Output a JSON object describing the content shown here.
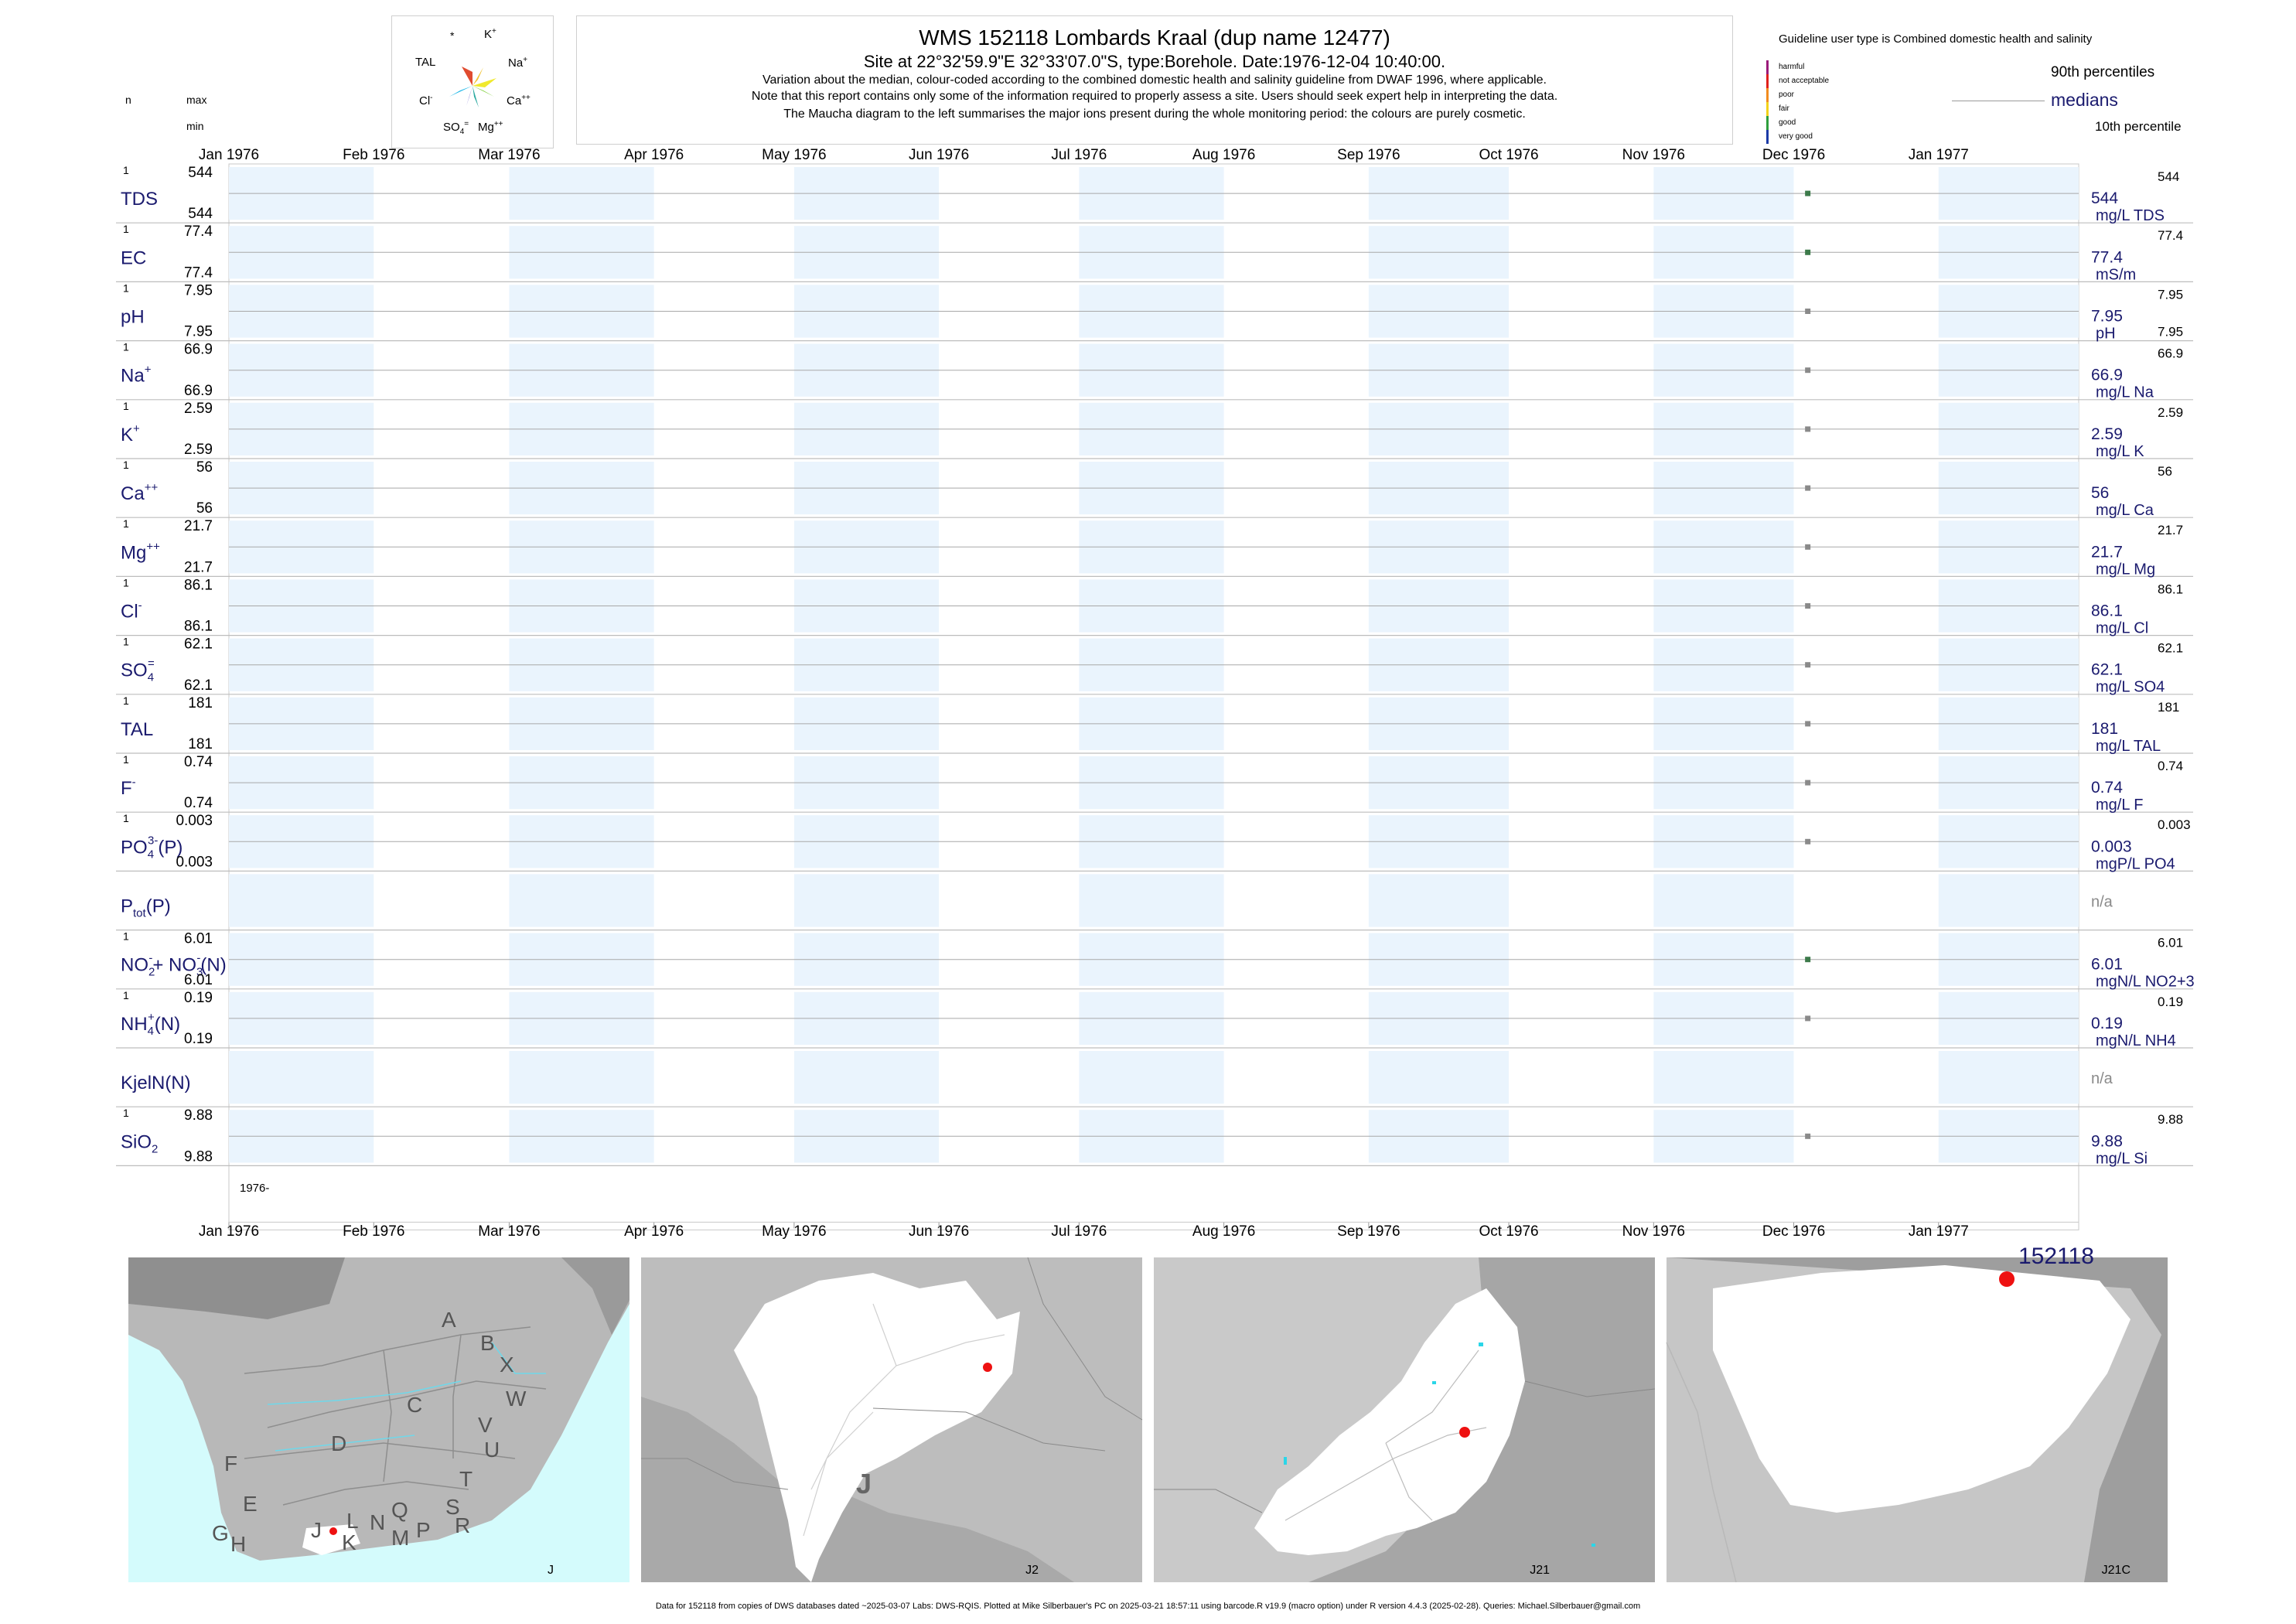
{
  "header": {
    "title": "WMS 152118  Lombards Kraal (dup name 12477)",
    "site": "Site at 22°32'59.9\"E 32°33'07.0\"S, type:Borehole. Date:1976-12-04 10:40:00.",
    "notes": [
      "Variation about the median,  colour-coded according to the combined domestic health and salinity guideline from DWAF 1996, where applicable.",
      "Note that this report contains only some of the information required to properly assess a site. Users should seek expert help in interpreting the data.",
      "The Maucha diagram to the left summarises the major ions present during the whole monitoring period: the colours are purely cosmetic."
    ],
    "col_n": "n",
    "col_max": "max",
    "col_min": "min"
  },
  "maucha": {
    "labels": {
      "star": "*",
      "k": "K",
      "k_sup": "+",
      "tal": "TAL",
      "na": "Na",
      "na_sup": "+",
      "cl": "Cl",
      "cl_sup": "-",
      "ca": "Ca",
      "ca_sup": "++",
      "so4": "SO",
      "so4_sub": "4",
      "so4_sup": "=",
      "mg": "Mg",
      "mg_sup": "++"
    }
  },
  "legend": {
    "guideline": "Guideline user type is Combined domestic health and salinity",
    "classes": [
      {
        "label": "harmful",
        "color": "#9b1b7a"
      },
      {
        "label": "not acceptable",
        "color": "#e0201b"
      },
      {
        "label": "poor",
        "color": "#f28c1e"
      },
      {
        "label": "fair",
        "color": "#f3d21b"
      },
      {
        "label": "good",
        "color": "#2e9e3d"
      },
      {
        "label": "very good",
        "color": "#1b3aa6"
      }
    ],
    "p90": "90th percentiles",
    "medians": "medians",
    "p10": "10th percentile"
  },
  "chart_data": {
    "type": "scatter",
    "x_axis": {
      "range": [
        "1976-01-01",
        "1977-01-31"
      ],
      "ticks": [
        "Jan 1976",
        "Feb 1976",
        "Mar 1976",
        "Apr 1976",
        "May 1976",
        "Jun 1976",
        "Jul 1976",
        "Aug 1976",
        "Sep 1976",
        "Oct 1976",
        "Nov 1976",
        "Dec 1976",
        "Jan 1977"
      ],
      "year_label": "1976-"
    },
    "sample_date": "1976-12-04",
    "shaded_months": [
      0,
      2,
      4,
      6,
      8,
      10,
      12
    ],
    "colors": {
      "band": "#eaf4fd",
      "point": "#3c7a4a",
      "point_grey": "#8a8a8a",
      "label": "#1a1a6e"
    },
    "panels": [
      {
        "id": "tds",
        "name": "TDS",
        "n": "1",
        "max": "544",
        "min": "544",
        "value": 544,
        "median": "544",
        "unit": "mg/L TDS",
        "p90": "544",
        "p10": "",
        "point": "green"
      },
      {
        "id": "ec",
        "name": "EC",
        "n": "1",
        "max": "77.4",
        "min": "77.4",
        "value": 77.4,
        "median": "77.4",
        "unit": "mS/m",
        "p90": "77.4",
        "p10": "",
        "point": "green"
      },
      {
        "id": "ph",
        "name": "pH",
        "n": "1",
        "max": "7.95",
        "min": "7.95",
        "value": 7.95,
        "median": "7.95",
        "unit": "pH",
        "p90": "7.95",
        "p10": "7.95",
        "point": "grey"
      },
      {
        "id": "na",
        "name": "Na",
        "sup": "+",
        "n": "1",
        "max": "66.9",
        "min": "66.9",
        "value": 66.9,
        "median": "66.9",
        "unit": "mg/L Na",
        "p90": "66.9",
        "p10": "",
        "point": "grey"
      },
      {
        "id": "k",
        "name": "K",
        "sup": "+",
        "n": "1",
        "max": "2.59",
        "min": "2.59",
        "value": 2.59,
        "median": "2.59",
        "unit": "mg/L K",
        "p90": "2.59",
        "p10": "",
        "point": "grey"
      },
      {
        "id": "ca",
        "name": "Ca",
        "sup": "++",
        "n": "1",
        "max": "56",
        "min": "56",
        "value": 56,
        "median": "56",
        "unit": "mg/L Ca",
        "p90": "56",
        "p10": "",
        "point": "grey"
      },
      {
        "id": "mg",
        "name": "Mg",
        "sup": "++",
        "n": "1",
        "max": "21.7",
        "min": "21.7",
        "value": 21.7,
        "median": "21.7",
        "unit": "mg/L Mg",
        "p90": "21.7",
        "p10": "",
        "point": "grey"
      },
      {
        "id": "cl",
        "name": "Cl",
        "sup": "-",
        "n": "1",
        "max": "86.1",
        "min": "86.1",
        "value": 86.1,
        "median": "86.1",
        "unit": "mg/L Cl",
        "p90": "86.1",
        "p10": "",
        "point": "grey"
      },
      {
        "id": "so4",
        "name": "SO",
        "sub": "4",
        "sup": "=",
        "n": "1",
        "max": "62.1",
        "min": "62.1",
        "value": 62.1,
        "median": "62.1",
        "unit": "mg/L SO4",
        "p90": "62.1",
        "p10": "",
        "point": "grey"
      },
      {
        "id": "tal",
        "name": "TAL",
        "n": "1",
        "max": "181",
        "min": "181",
        "value": 181,
        "median": "181",
        "unit": "mg/L TAL",
        "p90": "181",
        "p10": "",
        "point": "grey"
      },
      {
        "id": "f",
        "name": "F",
        "sup": "-",
        "n": "1",
        "max": "0.74",
        "min": "0.74",
        "value": 0.74,
        "median": "0.74",
        "unit": "mg/L F",
        "p90": "0.74",
        "p10": "",
        "point": "grey"
      },
      {
        "id": "po4",
        "name": "PO",
        "sub": "4",
        "sup": "3-",
        "suffix": "(P)",
        "n": "1",
        "max": "0.003",
        "min": "0.003",
        "value": 0.003,
        "median": "0.003",
        "unit": "mgP/L PO4",
        "p90": "0.003",
        "p10": "",
        "point": "grey"
      },
      {
        "id": "ptot",
        "name": "P",
        "sub": "tot",
        "suffix": "(P)",
        "n": "",
        "max": "",
        "min": "",
        "value": null,
        "median": "n/a",
        "unit": "",
        "p90": "",
        "p10": "",
        "point": "none"
      },
      {
        "id": "no3",
        "name": "NO",
        "sub": "2",
        "sup": "-",
        "mid": "+ NO",
        "sub2": "3",
        "sup2": "-",
        "suffix": "(N)",
        "n": "1",
        "max": "6.01",
        "min": "6.01",
        "value": 6.01,
        "median": "6.01",
        "unit": "mgN/L NO2+3",
        "p90": "6.01",
        "p10": "",
        "point": "green"
      },
      {
        "id": "nh4",
        "name": "NH",
        "sub": "4",
        "sup": "+",
        "suffix": "(N)",
        "n": "1",
        "max": "0.19",
        "min": "0.19",
        "value": 0.19,
        "median": "0.19",
        "unit": "mgN/L NH4",
        "p90": "0.19",
        "p10": "",
        "point": "grey"
      },
      {
        "id": "kjel",
        "name": "KjelN(N)",
        "n": "",
        "max": "",
        "min": "",
        "value": null,
        "median": "n/a",
        "unit": "",
        "p90": "",
        "p10": "",
        "point": "none"
      },
      {
        "id": "si",
        "name": "SiO",
        "sub": "2",
        "n": "1",
        "max": "9.88",
        "min": "9.88",
        "value": 9.88,
        "median": "9.88",
        "unit": "mg/L Si",
        "p90": "9.88",
        "p10": "",
        "point": "grey"
      }
    ]
  },
  "maps": {
    "m1": {
      "label": "J",
      "regions": [
        "A",
        "B",
        "X",
        "W",
        "C",
        "V",
        "U",
        "D",
        "T",
        "F",
        "E",
        "S",
        "Q",
        "R",
        "L",
        "N",
        "P",
        "M",
        "G",
        "H",
        "J",
        "K"
      ]
    },
    "m2": {
      "label": "J2",
      "big": "J"
    },
    "m3": {
      "label": "J21"
    },
    "m4": {
      "label": "J21C",
      "site": "152118"
    },
    "colors": {
      "sea": "#d4fbfc",
      "land": "#b0b0b0",
      "light": "#cfcfcf",
      "dark": "#8a8a8a",
      "catch": "#ffffff",
      "site": "#ee1111"
    }
  },
  "footer": "Data for 152118 from copies of DWS databases dated ~2025-03-07 Labs: DWS-RQIS. Plotted at Mike Silberbauer's PC on 2025-03-21 18:57:11 using barcode.R v19.9 (macro option) under R version 4.4.3 (2025-02-28). Queries: Michael.Silberbauer@gmail.com"
}
